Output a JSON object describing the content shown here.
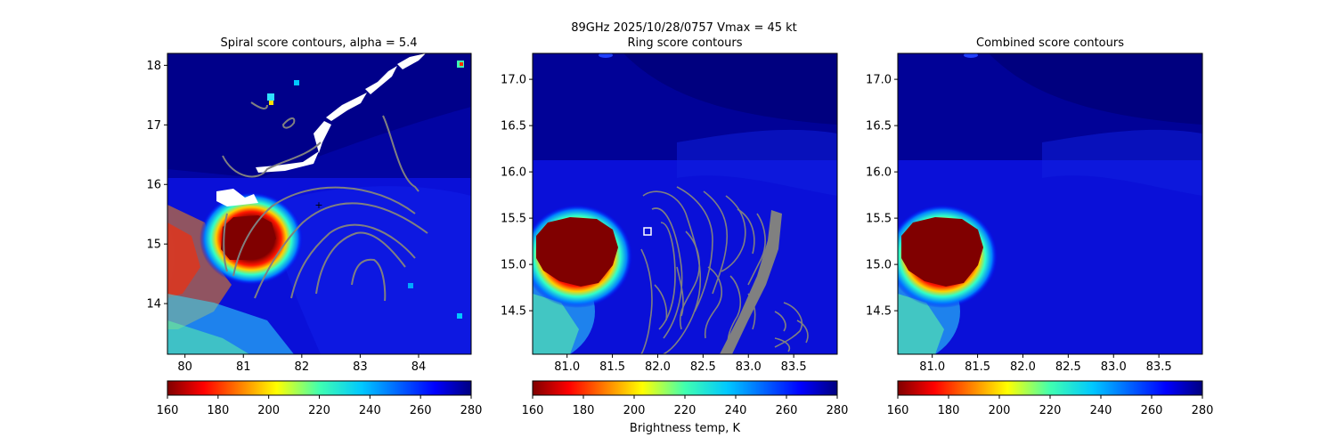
{
  "figure": {
    "suptitle_line1": "89GHz  2025/10/28/0757    Vmax = 45 kt",
    "colorbar_label": "Brightness temp, K"
  },
  "colorbar": {
    "min": 160,
    "max": 280,
    "ticks": [
      160,
      180,
      200,
      220,
      240,
      260,
      280
    ],
    "colormap": "jet_r"
  },
  "chart_data": [
    {
      "type": "heatmap",
      "title": "Spiral score contours, alpha =  5.4",
      "xlim": [
        79.7,
        84.9
      ],
      "ylim": [
        13.15,
        18.2
      ],
      "xticks": [
        80,
        81,
        82,
        83,
        84
      ],
      "yticks": [
        14,
        15,
        16,
        17,
        18
      ],
      "center_marker": {
        "symbol": "+",
        "x": 82.3,
        "y": 15.65
      },
      "cold_core": {
        "center": [
          81.1,
          15.05
        ],
        "min_tb": 160
      },
      "contour_color": "#808080",
      "missing_data_color": "#ffffff"
    },
    {
      "type": "heatmap",
      "title": "Ring score contours",
      "xlim": [
        80.62,
        83.98
      ],
      "ylim": [
        14.03,
        17.28
      ],
      "xticks": [
        81.0,
        81.5,
        82.0,
        82.5,
        83.0,
        83.5
      ],
      "yticks": [
        14.5,
        15.0,
        15.5,
        16.0,
        16.5,
        17.0
      ],
      "center_marker": {
        "symbol": "square",
        "x": 81.86,
        "y": 15.35
      },
      "cold_core": {
        "center": [
          81.1,
          15.05
        ],
        "min_tb": 160
      },
      "contour_color": "#808080"
    },
    {
      "type": "heatmap",
      "title": "Combined score contours",
      "xlim": [
        80.62,
        83.98
      ],
      "ylim": [
        14.03,
        17.28
      ],
      "xticks": [
        81.0,
        81.5,
        82.0,
        82.5,
        83.0,
        83.5
      ],
      "yticks": [
        14.5,
        15.0,
        15.5,
        16.0,
        16.5,
        17.0
      ],
      "cold_core": {
        "center": [
          81.1,
          15.05
        ],
        "min_tb": 160
      }
    }
  ]
}
